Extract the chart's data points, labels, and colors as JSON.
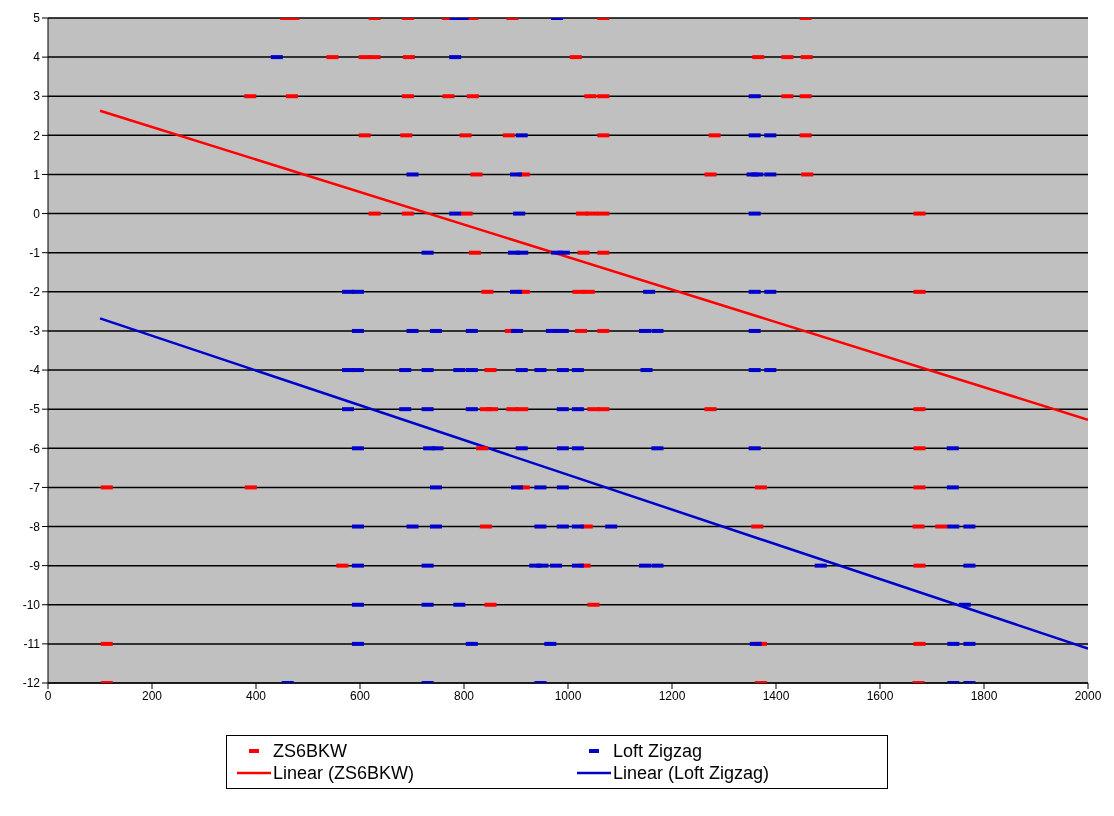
{
  "chart_data": {
    "type": "scatter",
    "xlim": [
      0,
      2000
    ],
    "xticks": [
      0,
      200,
      400,
      600,
      800,
      1000,
      1200,
      1400,
      1600,
      1800,
      2000
    ],
    "ylim": [
      -12,
      5
    ],
    "yticks": [
      -12,
      -11,
      -10,
      -9,
      -8,
      -7,
      -6,
      -5,
      -4,
      -3,
      -2,
      -1,
      0,
      1,
      2,
      3,
      4,
      5
    ],
    "grid": "y",
    "legend": "bottom",
    "series": [
      {
        "name": "ZS6BKW",
        "color": "#ff0000",
        "x": [
          458,
          472,
          628,
          692,
          769,
          816,
          893,
          1068,
          1457,
          547,
          609,
          628,
          694,
          1015,
          1366,
          1422,
          1459,
          389,
          469,
          692,
          770,
          817,
          1043,
          1068,
          1422,
          1457,
          609,
          689,
          803,
          886,
          1068,
          1282,
          1457,
          824,
          915,
          1274,
          1460,
          628,
          692,
          805,
          1027,
          1046,
          1068,
          1676,
          821,
          1030,
          1068,
          845,
          915,
          1020,
          1040,
          1676,
          890,
          1025,
          1068,
          851,
          842,
          854,
          893,
          912,
          1049,
          1068,
          1274,
          1676,
          835,
          1676,
          113,
          390,
          915,
          1371,
          1676,
          842,
          1036,
          1364,
          1674,
          1718,
          566,
          1032,
          1676,
          851,
          1049,
          113,
          1371,
          1676,
          113,
          1371,
          1674
        ],
        "values": [
          5,
          5,
          5,
          5,
          5,
          5,
          5,
          5,
          5,
          4,
          4,
          4,
          4,
          4,
          4,
          4,
          4,
          3,
          3,
          3,
          3,
          3,
          3,
          3,
          3,
          3,
          2,
          2,
          2,
          2,
          2,
          2,
          2,
          1,
          1,
          1,
          1,
          0,
          0,
          0,
          0,
          0,
          0,
          0,
          -1,
          -1,
          -1,
          -2,
          -2,
          -2,
          -2,
          -2,
          -3,
          -3,
          -3,
          -4,
          -5,
          -5,
          -5,
          -5,
          -5,
          -5,
          -5,
          -5,
          -6,
          -6,
          -7,
          -7,
          -7,
          -7,
          -7,
          -8,
          -8,
          -8,
          -8,
          -8,
          -9,
          -9,
          -9,
          -10,
          -10,
          -11,
          -11,
          -11,
          -12,
          -12,
          -12
        ]
      },
      {
        "name": "Loft Zigzag",
        "color": "#0000cc",
        "x": [
          784,
          797,
          979,
          440,
          783,
          1359,
          911,
          1359,
          1389,
          701,
          900,
          1355,
          1364,
          1389,
          783,
          906,
          1359,
          730,
          896,
          912,
          979,
          992,
          577,
          596,
          900,
          1156,
          1359,
          1389,
          596,
          701,
          746,
          815,
          902,
          969,
          990,
          1148,
          1172,
          1359,
          577,
          596,
          687,
          730,
          791,
          815,
          911,
          947,
          990,
          1019,
          1151,
          1359,
          1389,
          577,
          687,
          730,
          815,
          990,
          1019,
          596,
          733,
          749,
          911,
          990,
          1019,
          1172,
          1359,
          1740,
          746,
          902,
          947,
          990,
          1740,
          596,
          701,
          746,
          947,
          990,
          1019,
          1083,
          1741,
          1772,
          596,
          730,
          937,
          951,
          977,
          1019,
          1148,
          1172,
          1486,
          1772,
          596,
          730,
          791,
          1763,
          596,
          815,
          966,
          1361,
          1741,
          1772,
          461,
          730,
          947,
          1741,
          1772
        ],
        "values": [
          5,
          5,
          5,
          4,
          4,
          3,
          2,
          2,
          2,
          1,
          1,
          1,
          1,
          1,
          0,
          0,
          0,
          -1,
          -1,
          -1,
          -1,
          -1,
          -2,
          -2,
          -2,
          -2,
          -2,
          -2,
          -3,
          -3,
          -3,
          -3,
          -3,
          -3,
          -3,
          -3,
          -3,
          -3,
          -4,
          -4,
          -4,
          -4,
          -4,
          -4,
          -4,
          -4,
          -4,
          -4,
          -4,
          -4,
          -4,
          -5,
          -5,
          -5,
          -5,
          -5,
          -5,
          -6,
          -6,
          -6,
          -6,
          -6,
          -6,
          -6,
          -6,
          -6,
          -7,
          -7,
          -7,
          -7,
          -7,
          -8,
          -8,
          -8,
          -8,
          -8,
          -8,
          -8,
          -8,
          -8,
          -9,
          -9,
          -9,
          -9,
          -9,
          -9,
          -9,
          -9,
          -9,
          -9,
          -10,
          -10,
          -10,
          -10,
          -11,
          -11,
          -11,
          -11,
          -11,
          -11,
          -12,
          -12,
          -12,
          -12,
          -12
        ]
      },
      {
        "name": "Linear (ZS6BKW)",
        "type": "line",
        "color": "#ff0000",
        "x": [
          100,
          2000
        ],
        "values": [
          2.63,
          -5.27
        ]
      },
      {
        "name": "Linear (Loft Zigzag)",
        "type": "line",
        "color": "#0000cc",
        "x": [
          100,
          2000
        ],
        "values": [
          -2.68,
          -11.12
        ]
      }
    ]
  }
}
